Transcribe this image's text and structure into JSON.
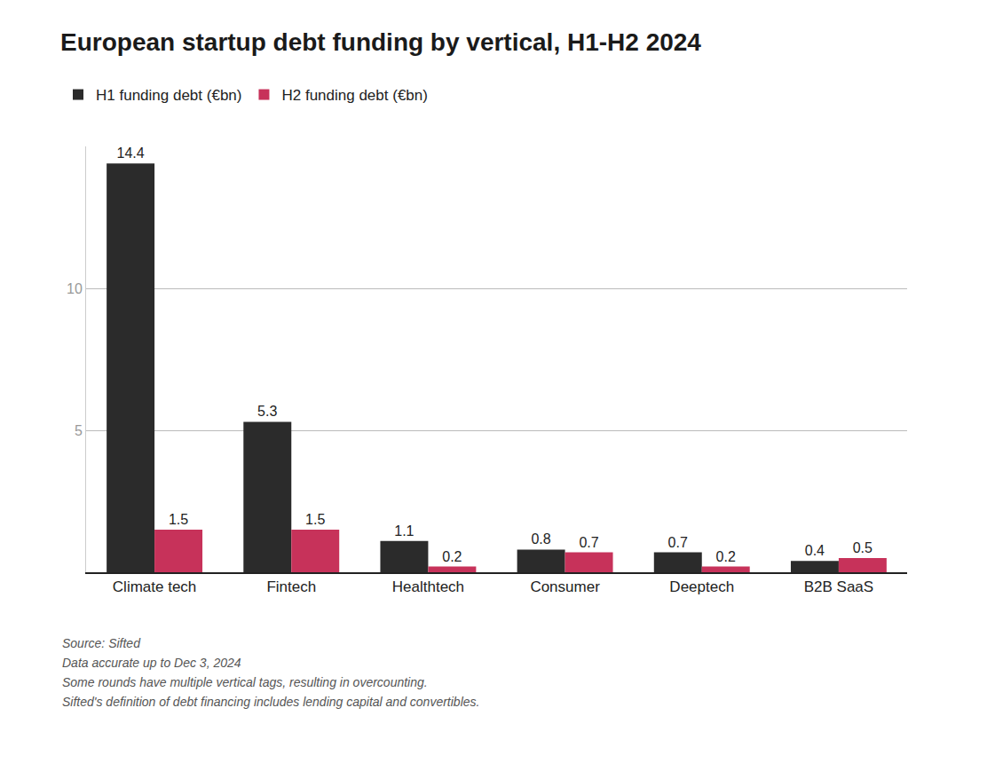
{
  "chart_data": {
    "type": "bar",
    "title": "European startup debt funding by vertical, H1-H2 2024",
    "categories": [
      "Climate tech",
      "Fintech",
      "Healthtech",
      "Consumer",
      "Deeptech",
      "B2B SaaS"
    ],
    "series": [
      {
        "name": "H1 funding debt (€bn)",
        "color": "#2b2b2b",
        "values": [
          14.4,
          5.3,
          1.1,
          0.8,
          0.7,
          0.4
        ]
      },
      {
        "name": "H2 funding debt (€bn)",
        "color": "#c7325a",
        "values": [
          1.5,
          1.5,
          0.2,
          0.7,
          0.2,
          0.5
        ]
      }
    ],
    "ylim": [
      0,
      15
    ],
    "yticks": [
      5,
      10
    ],
    "grid": true,
    "legend": "top left",
    "data_labels": true,
    "annotations": [
      "Source: Sifted",
      "Data accurate up to Dec 3, 2024",
      "Some rounds have multiple vertical tags, resulting in overcounting.",
      "Sifted's definition of debt financing includes lending capital and convertibles."
    ]
  }
}
